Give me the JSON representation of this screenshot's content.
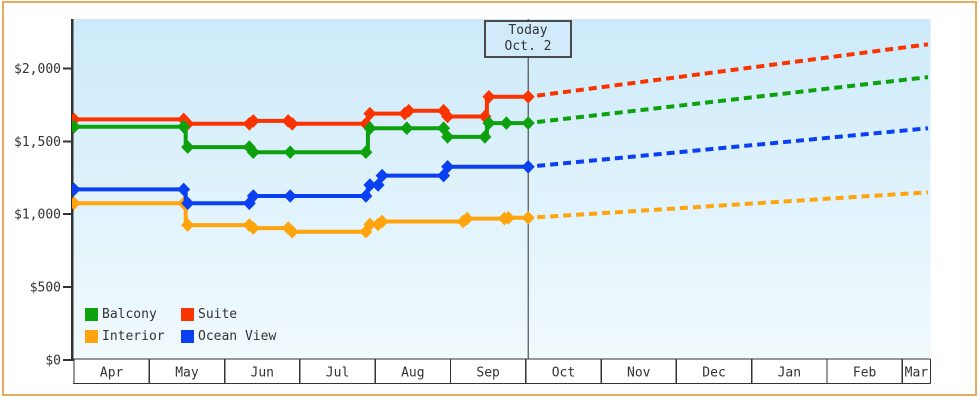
{
  "chart_data": {
    "type": "line",
    "subtype": "step-price-history-with-forecast",
    "title": "",
    "x_months": [
      "Apr",
      "May",
      "Jun",
      "Jul",
      "Aug",
      "Sep",
      "Oct",
      "Nov",
      "Dec",
      "Jan",
      "Feb",
      "Mar"
    ],
    "y_ticks": [
      {
        "label": "$0",
        "value": 0
      },
      {
        "label": "$500",
        "value": 500
      },
      {
        "label": "$1,000",
        "value": 1000
      },
      {
        "label": "$1,500",
        "value": 1500
      },
      {
        "label": "$2,000",
        "value": 2000
      }
    ],
    "ylim": [
      0,
      2340
    ],
    "grid": "off",
    "legend_position": "bottom-left",
    "today": {
      "month": "Oct",
      "day": 2,
      "label_lines": [
        "Today",
        "Oct. 2"
      ]
    },
    "forecast_style": "dotted",
    "series": [
      {
        "name": "Suite",
        "color": "#fa3400",
        "points": [
          [
            "Apr",
            1,
            1650
          ],
          [
            "May",
            16,
            1620
          ],
          [
            "Jun",
            12,
            1640
          ],
          [
            "Jun",
            28,
            1620
          ],
          [
            "Jul",
            29,
            1690
          ],
          [
            "Aug",
            14,
            1710
          ],
          [
            "Aug",
            30,
            1670
          ],
          [
            "Sep",
            16,
            1805
          ],
          [
            "Oct",
            2,
            1805
          ]
        ],
        "forecast_end": 2165
      },
      {
        "name": "Balcony",
        "color": "#0da10d",
        "points": [
          [
            "Apr",
            1,
            1600
          ],
          [
            "May",
            16,
            1460
          ],
          [
            "Jun",
            12,
            1425
          ],
          [
            "Jun",
            28,
            1425
          ],
          [
            "Jul",
            29,
            1590
          ],
          [
            "Aug",
            14,
            1590
          ],
          [
            "Aug",
            30,
            1530
          ],
          [
            "Sep",
            16,
            1625
          ],
          [
            "Sep",
            24,
            1625
          ],
          [
            "Oct",
            2,
            1625
          ]
        ],
        "forecast_end": 1940
      },
      {
        "name": "Interior",
        "color": "#ffa40c",
        "points": [
          [
            "Apr",
            1,
            1075
          ],
          [
            "May",
            16,
            925
          ],
          [
            "Jun",
            12,
            905
          ],
          [
            "Jun",
            28,
            880
          ],
          [
            "Jul",
            29,
            930
          ],
          [
            "Aug",
            3,
            950
          ],
          [
            "Sep",
            7,
            970
          ],
          [
            "Sep",
            24,
            975
          ],
          [
            "Oct",
            2,
            975
          ]
        ],
        "forecast_end": 1150
      },
      {
        "name": "Ocean View",
        "color": "#0b3ff2",
        "points": [
          [
            "Apr",
            1,
            1170
          ],
          [
            "May",
            16,
            1075
          ],
          [
            "Jun",
            12,
            1125
          ],
          [
            "Jun",
            28,
            1125
          ],
          [
            "Jul",
            29,
            1200
          ],
          [
            "Aug",
            3,
            1265
          ],
          [
            "Aug",
            30,
            1325
          ],
          [
            "Oct",
            2,
            1325
          ]
        ],
        "forecast_end": 1590
      }
    ],
    "legend_rows": [
      [
        "Balcony",
        "Suite"
      ],
      [
        "Interior",
        "Ocean View"
      ]
    ]
  }
}
